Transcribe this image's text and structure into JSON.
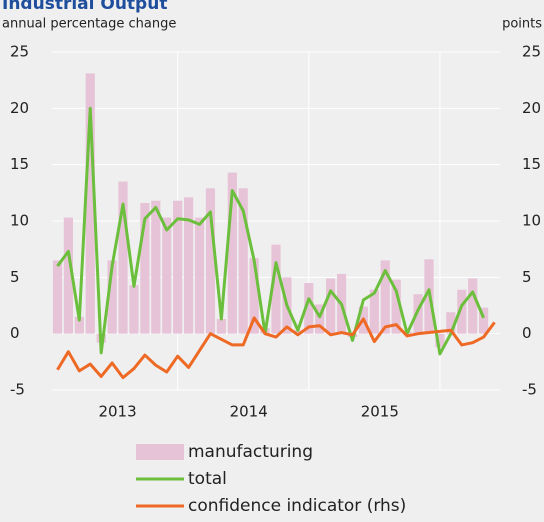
{
  "chart_data": {
    "type": "bar_line",
    "title": "Industrial Output",
    "y_label": "annual percentage change",
    "y2_label": "points",
    "categories": [
      null,
      null,
      null,
      null,
      null,
      "2013",
      null,
      null,
      null,
      null,
      null,
      null,
      null,
      null,
      null,
      null,
      null,
      "2014",
      null,
      null,
      null,
      null,
      null,
      null,
      null,
      null,
      null,
      null,
      null,
      "2015",
      null,
      null,
      null,
      null,
      null,
      null,
      null,
      null,
      null,
      null,
      null
    ],
    "series": [
      {
        "name": "manufacturing",
        "kind": "bar",
        "color": "#e6c3d6",
        "values": [
          6.5,
          10.3,
          1.5,
          23.1,
          -0.8,
          6.5,
          13.5,
          4.3,
          11.6,
          11.8,
          10.3,
          11.8,
          12.1,
          10.3,
          12.9,
          1.3,
          14.3,
          12.9,
          6.7,
          0.5,
          7.9,
          5.0,
          0.3,
          4.5,
          2.6,
          4.9,
          5.3,
          -0.3,
          2.4,
          3.9,
          6.5,
          4.8,
          0.2,
          3.5,
          6.6,
          -1.2,
          1.9,
          3.9,
          4.9,
          2.3,
          null
        ]
      },
      {
        "name": "total",
        "kind": "line",
        "color": "#6cbf3c",
        "values": [
          6.0,
          7.3,
          1.2,
          20.0,
          -1.7,
          6.0,
          11.5,
          4.2,
          10.2,
          11.2,
          9.2,
          10.2,
          10.1,
          9.7,
          10.8,
          1.3,
          12.7,
          10.9,
          6.5,
          0.0,
          6.3,
          2.5,
          0.3,
          3.1,
          1.5,
          3.8,
          2.6,
          -0.6,
          3.0,
          3.6,
          5.6,
          3.8,
          0.0,
          2.1,
          3.9,
          -1.8,
          0.0,
          2.5,
          3.7,
          1.4,
          null
        ]
      },
      {
        "name": "confidence  indicator (rhs)",
        "kind": "line",
        "axis": "y2",
        "color": "#ee6a24",
        "values": [
          -3.2,
          -1.6,
          -3.3,
          -2.7,
          -3.8,
          -2.6,
          -3.9,
          -3.1,
          -1.9,
          -2.8,
          -3.4,
          -2.0,
          -3.0,
          -1.5,
          0.0,
          -0.5,
          -1.0,
          -1.0,
          1.4,
          0.0,
          -0.3,
          0.6,
          -0.1,
          0.6,
          0.7,
          -0.1,
          0.1,
          -0.1,
          1.3,
          -0.7,
          0.6,
          0.8,
          -0.2,
          0.0,
          0.1,
          0.2,
          0.3,
          -1.0,
          -0.8,
          -0.3,
          1.0
        ]
      }
    ],
    "ylim": [
      -5,
      25
    ],
    "yticks": [
      -5,
      0,
      5,
      10,
      15,
      20,
      25
    ],
    "y2lim": [
      -5,
      25
    ],
    "y2ticks": [
      -5,
      0,
      5,
      10,
      15,
      20,
      25
    ],
    "grid": true
  }
}
